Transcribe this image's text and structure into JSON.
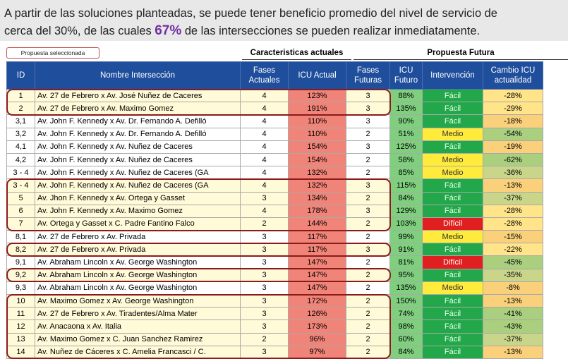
{
  "intro": {
    "line1": "A partir de las soluciones planteadas, se puede tener beneficio promedio del nivel de servicio de",
    "line2_pre": "cerca del 30%, de las cuales",
    "highlight": "67%",
    "line2_post": "de las intersecciones se pueden realizar inmediatamente."
  },
  "legend": "Propuesta seleccionada",
  "groups": {
    "actual": "Caracteristicas actuales",
    "future": "Propuesta Futura"
  },
  "headers": [
    "ID",
    "Nombre Intersección",
    "Fases Actuales",
    "ICU Actual",
    "Fases Futuras",
    "ICU Futuro",
    "Intervención",
    "Cambio ICU actualidad"
  ],
  "rows": [
    [
      "1",
      "Av. 27 de Febrero x Av. José Nuñez de Caceres",
      "4",
      "123%",
      "3",
      "88%",
      "Fácil",
      "-28%"
    ],
    [
      "2",
      "Av. 27 de Febrero x Av. Maximo Gomez",
      "4",
      "191%",
      "3",
      "135%",
      "Fácil",
      "-29%"
    ],
    [
      "3,1",
      "Av. John F. Kennedy x Av. Dr. Fernando A. Defilló",
      "4",
      "110%",
      "3",
      "90%",
      "Fácil",
      "-18%"
    ],
    [
      "3,2",
      "Av. John F. Kennedy x Av. Dr. Fernando A. Defilló",
      "4",
      "110%",
      "2",
      "51%",
      "Medio",
      "-54%"
    ],
    [
      "4,1",
      "Av. John F. Kennedy x Av. Nuñez de Caceres",
      "4",
      "154%",
      "3",
      "125%",
      "Fácil",
      "-19%"
    ],
    [
      "4,2",
      "Av. John F. Kennedy x Av. Nuñez de Caceres",
      "4",
      "154%",
      "2",
      "58%",
      "Medio",
      "-62%"
    ],
    [
      "3 - 4",
      "Av. John F. Kennedy x Av. Nuñez de Caceres (GA",
      "4",
      "132%",
      "2",
      "85%",
      "Medio",
      "-36%"
    ],
    [
      "3 - 4",
      "Av. John F. Kennedy x Av. Nuñez de Caceres (GA",
      "4",
      "132%",
      "3",
      "115%",
      "Fácil",
      "-13%"
    ],
    [
      "5",
      "Av. Jhon F. Kennedy x Av. Ortega y Gasset",
      "3",
      "134%",
      "2",
      "84%",
      "Fácil",
      "-37%"
    ],
    [
      "6",
      "Av. John F. Kennedy x Av. Maximo Gomez",
      "4",
      "178%",
      "3",
      "129%",
      "Fácil",
      "-28%"
    ],
    [
      "7",
      "Av. Ortega y Gasset x C. Padre Fantino Falco",
      "2",
      "144%",
      "2",
      "103%",
      "Difícil",
      "-28%"
    ],
    [
      "8,1",
      "Av. 27 de Febrero x Av. Privada",
      "3",
      "117%",
      "2",
      "99%",
      "Medio",
      "-15%"
    ],
    [
      "8,2",
      "Av. 27 de Febrero x Av. Privada",
      "3",
      "117%",
      "3",
      "91%",
      "Fácil",
      "-22%"
    ],
    [
      "9,1",
      "Av. Abraham Lincoln x Av. George Washington",
      "3",
      "147%",
      "2",
      "81%",
      "Difícil",
      "-45%"
    ],
    [
      "9,2",
      "Av. Abraham Lincoln x Av. George Washington",
      "3",
      "147%",
      "2",
      "95%",
      "Fácil",
      "-35%"
    ],
    [
      "9,3",
      "Av. Abraham Lincoln x Av. George Washington",
      "3",
      "147%",
      "2",
      "135%",
      "Medio",
      "-8%"
    ],
    [
      "10",
      "Av. Maximo Gomez x Av. George Washington",
      "3",
      "172%",
      "2",
      "150%",
      "Fácil",
      "-13%"
    ],
    [
      "11",
      "Av. 27 de Febrero x Av. Tiradentes/Alma Mater",
      "3",
      "126%",
      "2",
      "74%",
      "Fácil",
      "-41%"
    ],
    [
      "12",
      "Av. Anacaona x Av. Italia",
      "3",
      "173%",
      "2",
      "98%",
      "Fácil",
      "-43%"
    ],
    [
      "13",
      "Av. Maximo Gomez x C. Juan Sanchez Ramirez",
      "2",
      "96%",
      "2",
      "60%",
      "Fácil",
      "-37%"
    ],
    [
      "14",
      "Av. Nuñez de Cáceres x C. Amelia Francasci / C.",
      "3",
      "97%",
      "2",
      "84%",
      "Fácil",
      "-13%"
    ]
  ],
  "selected_rows": [
    0,
    1,
    7,
    8,
    9,
    10,
    12,
    14,
    16,
    17,
    18,
    19,
    20
  ],
  "colors": {
    "header_bg": "#1f4e9c",
    "icu_actual_bg": "#f08478",
    "icu_future_bg": "#7fcf7f",
    "easy": "#22a84a",
    "medium": "#ffeb3b",
    "hard": "#e02020",
    "selection_border": "#8b1a1a",
    "highlight_text": "#7030a0"
  }
}
